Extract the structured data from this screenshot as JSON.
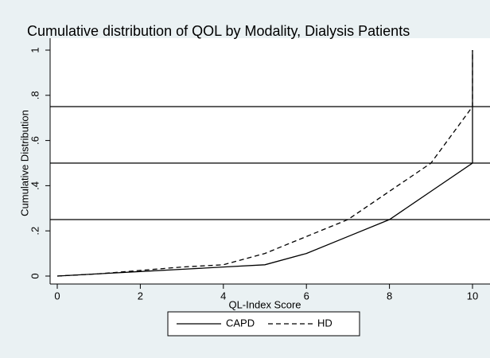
{
  "chart_data": {
    "type": "line",
    "title": "Cumulative distribution of QOL by Modality, Dialysis Patients",
    "x_label": "QL-Index Score",
    "y_label": "Cumulative Distribution",
    "series": [
      {
        "name": "CAPD",
        "color": "#000000",
        "style": "solid",
        "x": [
          0,
          1,
          2,
          3,
          4,
          5,
          6,
          7,
          8,
          9,
          10,
          10
        ],
        "values": [
          0,
          0.01,
          0.02,
          0.03,
          0.04,
          0.05,
          0.1,
          0.175,
          0.25,
          0.375,
          0.5,
          1
        ]
      },
      {
        "name": "HD",
        "color": "#000000",
        "style": "dashed",
        "x": [
          0,
          1,
          2,
          3,
          4,
          5,
          6,
          7,
          8,
          9,
          10,
          10
        ],
        "values": [
          0,
          0.01,
          0.025,
          0.04,
          0.05,
          0.1,
          0.175,
          0.25,
          0.375,
          0.5,
          0.75,
          1
        ]
      }
    ],
    "reference_lines": [
      0.25,
      0.5,
      0.75
    ],
    "xlim": [
      0,
      10
    ],
    "xticks": [
      0,
      2,
      4,
      6,
      8,
      10
    ],
    "ylim": [
      0,
      1
    ],
    "yticks": [
      0,
      {
        "value": 0.2,
        "label": ".2"
      },
      {
        "value": 0.4,
        "label": ".4"
      },
      {
        "value": 0.6,
        "label": ".6"
      },
      {
        "value": 0.8,
        "label": ".8"
      },
      1
    ],
    "legend": "bottom"
  }
}
